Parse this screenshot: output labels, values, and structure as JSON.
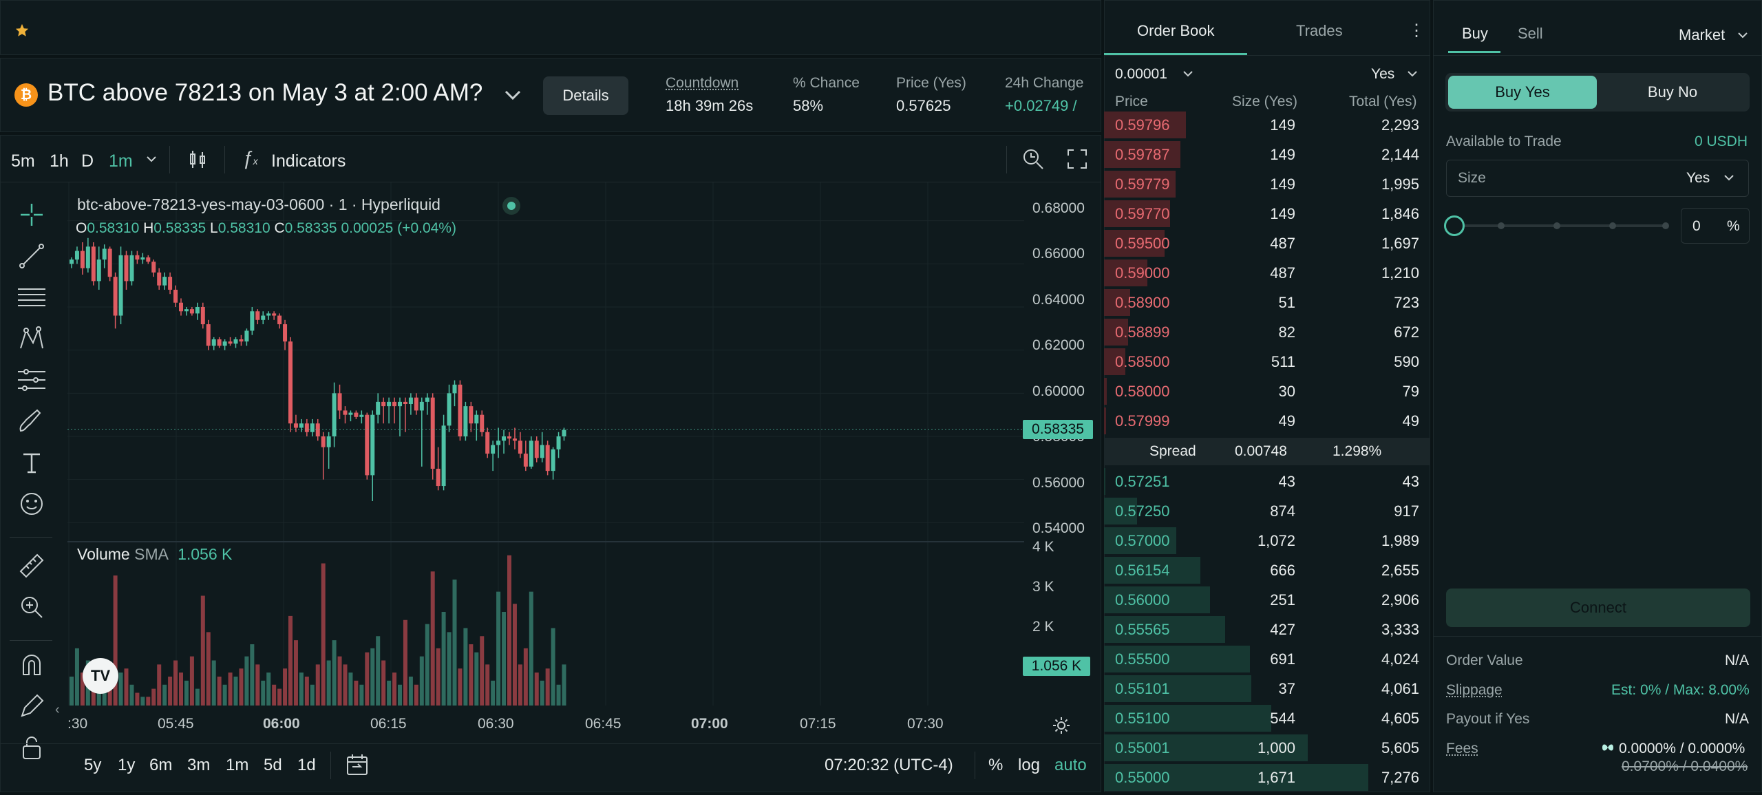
{
  "market": {
    "title": "BTC above 78213 on May 3 at 2:00 AM?",
    "details_label": "Details",
    "stats": [
      {
        "label": "Countdown",
        "value": "18h 39m 26s"
      },
      {
        "label": "% Chance",
        "value": "58%"
      },
      {
        "label": "Price (Yes)",
        "value": "0.57625"
      },
      {
        "label": "24h Change",
        "value": "+0.02749 /"
      }
    ]
  },
  "toolbar": {
    "intervals": [
      "5m",
      "1h",
      "D",
      "1m"
    ],
    "indicators_label": "Indicators"
  },
  "chart": {
    "symbol_line": "btc-above-78213-yes-may-03-0600 · 1 · Hyperliquid",
    "ohlc": {
      "o_label": "O",
      "o": "0.58310",
      "h_label": "H",
      "h": "0.58335",
      "l_label": "L",
      "l": "0.58310",
      "c_label": "C",
      "c": "0.58335",
      "chg": "0.00025 (+0.04%)"
    },
    "volume_label": "Volume",
    "sma_label": "SMA",
    "sma_value": "1.056 K",
    "current_price_tag": "0.58335",
    "current_volume_tag": "1.056 K",
    "y_ticks": [
      "0.68000",
      "0.66000",
      "0.64000",
      "0.62000",
      "0.60000",
      "0.58000",
      "0.56000",
      "0.54000"
    ],
    "vol_ticks": [
      "4 K",
      "3 K",
      "2 K"
    ],
    "x_ticks": [
      ":30",
      "05:45",
      "06:00",
      "06:15",
      "06:30",
      "06:45",
      "07:00",
      "07:15",
      "07:30"
    ],
    "ranges": [
      "5y",
      "1y",
      "6m",
      "3m",
      "1m",
      "5d",
      "1d"
    ],
    "clock": "07:20:32 (UTC-4)",
    "pct_label": "%",
    "log_label": "log",
    "auto_label": "auto",
    "colors": {
      "up": "#4fc2a6",
      "down": "#e05c62"
    }
  },
  "chart_data": {
    "type": "candlestick",
    "y_range": [
      0.535,
      0.685
    ],
    "x_ticks": [
      ":30",
      "05:45",
      "06:00",
      "06:15",
      "06:30",
      "06:45",
      "07:00",
      "07:15",
      "07:30"
    ],
    "last_close": 0.58335,
    "volume_range": [
      0,
      4000
    ],
    "volume_sma": 1056,
    "candles": [
      [
        0.66,
        0.663,
        0.658,
        0.662
      ],
      [
        0.662,
        0.668,
        0.66,
        0.666
      ],
      [
        0.666,
        0.67,
        0.655,
        0.658
      ],
      [
        0.658,
        0.672,
        0.656,
        0.668
      ],
      [
        0.668,
        0.67,
        0.65,
        0.652
      ],
      [
        0.652,
        0.668,
        0.648,
        0.662
      ],
      [
        0.662,
        0.669,
        0.658,
        0.667
      ],
      [
        0.667,
        0.668,
        0.652,
        0.654
      ],
      [
        0.654,
        0.656,
        0.63,
        0.636
      ],
      [
        0.636,
        0.668,
        0.632,
        0.664
      ],
      [
        0.664,
        0.666,
        0.648,
        0.652
      ],
      [
        0.652,
        0.666,
        0.65,
        0.664
      ],
      [
        0.664,
        0.666,
        0.66,
        0.662
      ],
      [
        0.662,
        0.665,
        0.66,
        0.663
      ],
      [
        0.663,
        0.664,
        0.66,
        0.661
      ],
      [
        0.661,
        0.662,
        0.654,
        0.656
      ],
      [
        0.656,
        0.658,
        0.648,
        0.65
      ],
      [
        0.65,
        0.656,
        0.648,
        0.654
      ],
      [
        0.654,
        0.656,
        0.646,
        0.648
      ],
      [
        0.648,
        0.65,
        0.64,
        0.642
      ],
      [
        0.642,
        0.644,
        0.636,
        0.638
      ],
      [
        0.638,
        0.64,
        0.636,
        0.639
      ],
      [
        0.639,
        0.64,
        0.636,
        0.637
      ],
      [
        0.637,
        0.642,
        0.634,
        0.64
      ],
      [
        0.64,
        0.642,
        0.63,
        0.632
      ],
      [
        0.632,
        0.634,
        0.62,
        0.622
      ],
      [
        0.622,
        0.626,
        0.62,
        0.625
      ],
      [
        0.625,
        0.626,
        0.621,
        0.622
      ],
      [
        0.622,
        0.625,
        0.62,
        0.624
      ],
      [
        0.624,
        0.626,
        0.622,
        0.623
      ],
      [
        0.623,
        0.626,
        0.621,
        0.625
      ],
      [
        0.625,
        0.627,
        0.622,
        0.624
      ],
      [
        0.624,
        0.63,
        0.622,
        0.629
      ],
      [
        0.629,
        0.64,
        0.627,
        0.638
      ],
      [
        0.638,
        0.639,
        0.632,
        0.634
      ],
      [
        0.634,
        0.638,
        0.632,
        0.636
      ],
      [
        0.636,
        0.638,
        0.634,
        0.637
      ],
      [
        0.637,
        0.638,
        0.634,
        0.636
      ],
      [
        0.636,
        0.637,
        0.63,
        0.632
      ],
      [
        0.632,
        0.634,
        0.62,
        0.624
      ],
      [
        0.624,
        0.626,
        0.582,
        0.586
      ],
      [
        0.586,
        0.59,
        0.582,
        0.584
      ],
      [
        0.584,
        0.588,
        0.582,
        0.586
      ],
      [
        0.586,
        0.588,
        0.58,
        0.582
      ],
      [
        0.582,
        0.588,
        0.58,
        0.586
      ],
      [
        0.586,
        0.588,
        0.578,
        0.58
      ],
      [
        0.58,
        0.582,
        0.56,
        0.575
      ],
      [
        0.575,
        0.582,
        0.565,
        0.58
      ],
      [
        0.58,
        0.605,
        0.575,
        0.6
      ],
      [
        0.6,
        0.604,
        0.588,
        0.592
      ],
      [
        0.592,
        0.594,
        0.586,
        0.59
      ],
      [
        0.59,
        0.592,
        0.587,
        0.591
      ],
      [
        0.591,
        0.592,
        0.588,
        0.589
      ],
      [
        0.589,
        0.592,
        0.586,
        0.59
      ],
      [
        0.59,
        0.591,
        0.56,
        0.562
      ],
      [
        0.562,
        0.592,
        0.55,
        0.59
      ],
      [
        0.59,
        0.6,
        0.586,
        0.596
      ],
      [
        0.596,
        0.598,
        0.586,
        0.594
      ],
      [
        0.594,
        0.598,
        0.586,
        0.596
      ],
      [
        0.596,
        0.598,
        0.586,
        0.594
      ],
      [
        0.594,
        0.598,
        0.58,
        0.596
      ],
      [
        0.596,
        0.598,
        0.582,
        0.595
      ],
      [
        0.595,
        0.6,
        0.59,
        0.598
      ],
      [
        0.598,
        0.6,
        0.59,
        0.592
      ],
      [
        0.592,
        0.598,
        0.566,
        0.596
      ],
      [
        0.596,
        0.6,
        0.59,
        0.598
      ],
      [
        0.598,
        0.6,
        0.56,
        0.565
      ],
      [
        0.565,
        0.575,
        0.555,
        0.557
      ],
      [
        0.557,
        0.59,
        0.555,
        0.585
      ],
      [
        0.585,
        0.604,
        0.582,
        0.6
      ],
      [
        0.6,
        0.606,
        0.594,
        0.604
      ],
      [
        0.604,
        0.606,
        0.578,
        0.58
      ],
      [
        0.58,
        0.596,
        0.578,
        0.594
      ],
      [
        0.594,
        0.596,
        0.582,
        0.586
      ],
      [
        0.586,
        0.592,
        0.578,
        0.59
      ],
      [
        0.59,
        0.592,
        0.58,
        0.582
      ],
      [
        0.582,
        0.584,
        0.57,
        0.572
      ],
      [
        0.572,
        0.578,
        0.564,
        0.576
      ],
      [
        0.576,
        0.584,
        0.57,
        0.578
      ],
      [
        0.578,
        0.583,
        0.572,
        0.58
      ],
      [
        0.58,
        0.582,
        0.576,
        0.579
      ],
      [
        0.579,
        0.584,
        0.574,
        0.578
      ],
      [
        0.578,
        0.582,
        0.57,
        0.572
      ],
      [
        0.572,
        0.578,
        0.564,
        0.566
      ],
      [
        0.566,
        0.58,
        0.565,
        0.578
      ],
      [
        0.578,
        0.58,
        0.568,
        0.57
      ],
      [
        0.57,
        0.582,
        0.568,
        0.576
      ],
      [
        0.576,
        0.578,
        0.562,
        0.564
      ],
      [
        0.564,
        0.575,
        0.56,
        0.574
      ],
      [
        0.574,
        0.582,
        0.57,
        0.58
      ],
      [
        0.58,
        0.584,
        0.578,
        0.583
      ]
    ],
    "volumes": [
      800,
      1500,
      900,
      1200,
      1100,
      500,
      600,
      700,
      3300,
      900,
      1000,
      600,
      400,
      300,
      300,
      500,
      1100,
      600,
      800,
      1200,
      900,
      700,
      1300,
      500,
      2800,
      1900,
      1200,
      800,
      600,
      900,
      800,
      1000,
      1300,
      1600,
      1100,
      700,
      900,
      600,
      500,
      1000,
      2300,
      1700,
      900,
      800,
      600,
      1100,
      3600,
      1200,
      1700,
      1300,
      1100,
      900,
      700,
      600,
      1400,
      1500,
      1800,
      1200,
      700,
      900,
      600,
      2200,
      800,
      600,
      1300,
      2100,
      3400,
      1500,
      2400,
      1900,
      3200,
      1000,
      2000,
      1600,
      1400,
      1800,
      1100,
      700,
      2900,
      2400,
      3800,
      2600,
      1100,
      1500,
      2900,
      900,
      700,
      1000,
      2000,
      600,
      1100
    ]
  },
  "orderbook": {
    "tabs": [
      "Order Book",
      "Trades"
    ],
    "tick_size": "0.00001",
    "side": "Yes",
    "headers": [
      "Price",
      "Size (Yes)",
      "Total (Yes)"
    ],
    "asks": [
      {
        "price": "0.59796",
        "size": "149",
        "total": "2,293",
        "depth": 0.31
      },
      {
        "price": "0.59787",
        "size": "149",
        "total": "2,144",
        "depth": 0.29
      },
      {
        "price": "0.59779",
        "size": "149",
        "total": "1,995",
        "depth": 0.27
      },
      {
        "price": "0.59770",
        "size": "149",
        "total": "1,846",
        "depth": 0.25
      },
      {
        "price": "0.59500",
        "size": "487",
        "total": "1,697",
        "depth": 0.23
      },
      {
        "price": "0.59000",
        "size": "487",
        "total": "1,210",
        "depth": 0.165
      },
      {
        "price": "0.58900",
        "size": "51",
        "total": "723",
        "depth": 0.1
      },
      {
        "price": "0.58899",
        "size": "82",
        "total": "672",
        "depth": 0.09
      },
      {
        "price": "0.58500",
        "size": "511",
        "total": "590",
        "depth": 0.08
      },
      {
        "price": "0.58000",
        "size": "30",
        "total": "79",
        "depth": 0.01
      },
      {
        "price": "0.57999",
        "size": "49",
        "total": "49",
        "depth": 0.007
      }
    ],
    "spread": {
      "label": "Spread",
      "value": "0.00748",
      "pct": "1.298%"
    },
    "bids": [
      {
        "price": "0.57251",
        "size": "43",
        "total": "43",
        "depth": 0.006
      },
      {
        "price": "0.57250",
        "size": "874",
        "total": "917",
        "depth": 0.126
      },
      {
        "price": "0.57000",
        "size": "1,072",
        "total": "1,989",
        "depth": 0.273
      },
      {
        "price": "0.56154",
        "size": "666",
        "total": "2,655",
        "depth": 0.365
      },
      {
        "price": "0.56000",
        "size": "251",
        "total": "2,906",
        "depth": 0.4
      },
      {
        "price": "0.55565",
        "size": "427",
        "total": "3,333",
        "depth": 0.458
      },
      {
        "price": "0.55500",
        "size": "691",
        "total": "4,024",
        "depth": 0.553
      },
      {
        "price": "0.55101",
        "size": "37",
        "total": "4,061",
        "depth": 0.558
      },
      {
        "price": "0.55100",
        "size": "544",
        "total": "4,605",
        "depth": 0.633
      },
      {
        "price": "0.55001",
        "size": "1,000",
        "total": "5,605",
        "depth": 0.77
      },
      {
        "price": "0.55000",
        "size": "1,671",
        "total": "7,276",
        "depth": 1.0
      }
    ]
  },
  "trade": {
    "tabs": [
      "Buy",
      "Sell"
    ],
    "order_type": "Market",
    "buy_yes": "Buy Yes",
    "buy_no": "Buy No",
    "available_label": "Available to Trade",
    "available_value": "0 USDH",
    "size_label": "Size",
    "size_unit": "Yes",
    "pct_value": "0",
    "pct_unit": "%",
    "slider_level": 0,
    "connect_label": "Connect",
    "order_value_label": "Order Value",
    "order_value": "N/A",
    "slippage_label": "Slippage",
    "slippage_value": "Est: 0% / Max: 8.00%",
    "payout_label": "Payout if Yes",
    "payout_value": "N/A",
    "fees_label": "Fees",
    "fees_value": "0.0000% / 0.0000%",
    "fees_old": "0.0700% / 0.0400%"
  }
}
